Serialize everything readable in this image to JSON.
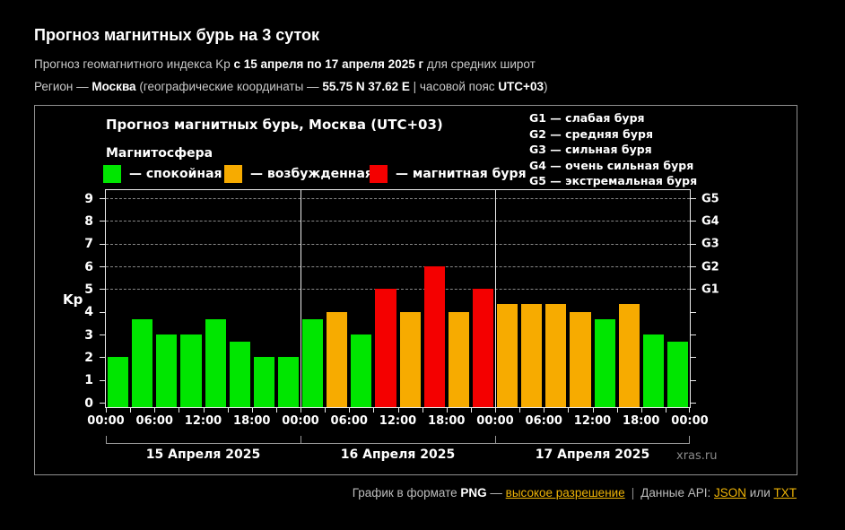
{
  "header": {
    "title": "Прогноз магнитных бурь на 3 суток",
    "line2_prefix": "Прогноз геомагнитного индекса Kp ",
    "line2_bold": "с 15 апреля по 17 апреля 2025 г",
    "line2_suffix": " для средних широт",
    "line3_prefix": "Регион — ",
    "line3_region": "Москва",
    "line3_mid1": " (географические координаты — ",
    "line3_coords": "55.75 N 37.62 E",
    "line3_mid2": " | часовой пояс ",
    "line3_tz": "UTC+03",
    "line3_suffix": ")"
  },
  "chart": {
    "title": "Прогноз магнитных бурь, Москва (UTC+03)",
    "magnetosphere_label": "Магнитосфера",
    "legend": [
      {
        "key": "green",
        "label": "— спокойная",
        "color": "#00e600"
      },
      {
        "key": "orange",
        "label": "— возбужденная",
        "color": "#f7ab00"
      },
      {
        "key": "red",
        "label": "— магнитная буря",
        "color": "#f40000"
      }
    ],
    "g_legend": [
      "G1 — слабая буря",
      "G2 — средняя буря",
      "G3 — сильная буря",
      "G4 — очень сильная буря",
      "G5 — экстремальная буря"
    ],
    "watermark": "xras.ru"
  },
  "chart_data": {
    "type": "bar",
    "title": "Прогноз магнитных бурь, Москва (UTC+03)",
    "ylabel": "Kp",
    "ylim": [
      0,
      9
    ],
    "yticks": [
      0,
      1,
      2,
      3,
      4,
      5,
      6,
      7,
      8,
      9
    ],
    "grid_levels": [
      5,
      6,
      7,
      8,
      9
    ],
    "grid_style": "dashed",
    "right_axis": [
      {
        "label": "G1",
        "kp": 5
      },
      {
        "label": "G2",
        "kp": 6
      },
      {
        "label": "G3",
        "kp": 7
      },
      {
        "label": "G4",
        "kp": 8
      },
      {
        "label": "G5",
        "kp": 9
      }
    ],
    "x_tick_labels": [
      "00:00",
      "06:00",
      "12:00",
      "18:00",
      "00:00",
      "06:00",
      "12:00",
      "18:00",
      "00:00",
      "06:00",
      "12:00",
      "18:00",
      "00:00"
    ],
    "hours_per_bar": 3,
    "days": [
      {
        "date": "15 Апреля 2025",
        "values": [
          2,
          3.67,
          3,
          3,
          3.67,
          2.67,
          2,
          2
        ],
        "colors": [
          "green",
          "green",
          "green",
          "green",
          "green",
          "green",
          "green",
          "green"
        ]
      },
      {
        "date": "16 Апреля 2025",
        "values": [
          3.67,
          4,
          3,
          5,
          4,
          6,
          4,
          5
        ],
        "colors": [
          "green",
          "orange",
          "green",
          "red",
          "orange",
          "red",
          "orange",
          "red"
        ]
      },
      {
        "date": "17 Апреля 2025",
        "values": [
          4.33,
          4.33,
          4.33,
          4,
          3.67,
          4.33,
          3,
          2.67
        ],
        "colors": [
          "orange",
          "orange",
          "orange",
          "orange",
          "green",
          "orange",
          "green",
          "green"
        ]
      }
    ]
  },
  "footer": {
    "label1": "График в формате ",
    "png": "PNG",
    "dash": " — ",
    "link_hires": "высокое разрешение",
    "divider": "|",
    "label2": "Данные API: ",
    "link_json": "JSON",
    "or_text": " или ",
    "link_txt": "TXT"
  },
  "colors": {
    "background": "#000000",
    "quiet_green": "#00e600",
    "excited_orange": "#f7ab00",
    "storm_red": "#f40000",
    "link_gold": "#efb406",
    "grid_gray": "#878787",
    "axis_white": "#ececec"
  }
}
